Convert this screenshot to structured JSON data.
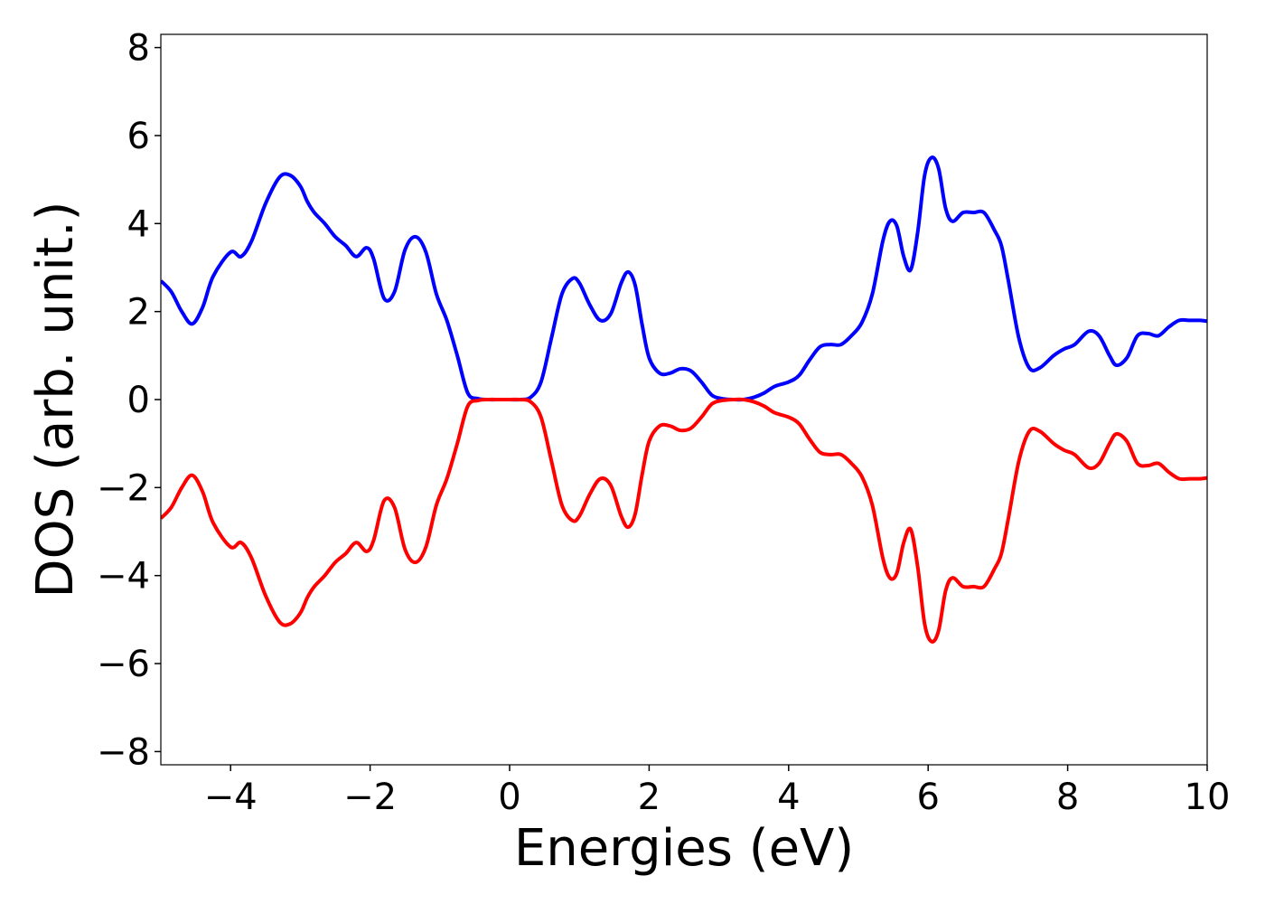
{
  "chart_data": {
    "type": "line",
    "xlabel": "Energies (eV)",
    "ylabel": "DOS (arb. unit.)",
    "xlim": [
      -5,
      10
    ],
    "ylim": [
      -8.3,
      8.3
    ],
    "xticks": [
      -4,
      -2,
      0,
      2,
      4,
      6,
      8,
      10
    ],
    "yticks": [
      -8,
      -6,
      -4,
      -2,
      0,
      2,
      4,
      6,
      8
    ],
    "xtick_labels": [
      "−4",
      "−2",
      "0",
      "2",
      "4",
      "6",
      "8",
      "10"
    ],
    "ytick_labels": [
      "−8",
      "−6",
      "−4",
      "−2",
      "0",
      "2",
      "4",
      "6",
      "8"
    ],
    "grid": false,
    "series": [
      {
        "color": "#0000ff",
        "x": [
          -5.0,
          -4.85,
          -4.7,
          -4.55,
          -4.4,
          -4.25,
          -4.0,
          -3.85,
          -3.7,
          -3.5,
          -3.3,
          -3.15,
          -3.0,
          -2.9,
          -2.8,
          -2.65,
          -2.5,
          -2.35,
          -2.2,
          -2.05,
          -1.95,
          -1.8,
          -1.65,
          -1.5,
          -1.35,
          -1.2,
          -1.05,
          -0.9,
          -0.75,
          -0.6,
          -0.45,
          -0.3,
          -0.15,
          0.0,
          0.15,
          0.3,
          0.45,
          0.6,
          0.75,
          0.9,
          1.0,
          1.15,
          1.3,
          1.45,
          1.6,
          1.7,
          1.8,
          1.9,
          2.0,
          2.15,
          2.3,
          2.45,
          2.6,
          2.75,
          2.9,
          3.05,
          3.2,
          3.35,
          3.5,
          3.65,
          3.8,
          4.0,
          4.15,
          4.3,
          4.45,
          4.6,
          4.75,
          4.9,
          5.05,
          5.2,
          5.35,
          5.45,
          5.55,
          5.65,
          5.75,
          5.85,
          5.95,
          6.05,
          6.15,
          6.25,
          6.35,
          6.5,
          6.65,
          6.8,
          6.95,
          7.05,
          7.15,
          7.3,
          7.45,
          7.6,
          7.8,
          7.95,
          8.1,
          8.3,
          8.45,
          8.6,
          8.7,
          8.85,
          9.0,
          9.15,
          9.3,
          9.45,
          9.6,
          9.75,
          9.9,
          10.0
        ],
        "y": [
          2.7,
          2.45,
          2.0,
          1.72,
          2.1,
          2.8,
          3.35,
          3.25,
          3.6,
          4.45,
          5.05,
          5.1,
          4.85,
          4.5,
          4.25,
          4.0,
          3.7,
          3.5,
          3.25,
          3.45,
          3.2,
          2.3,
          2.45,
          3.4,
          3.7,
          3.35,
          2.4,
          1.8,
          1.0,
          0.15,
          0.02,
          0.0,
          0.0,
          0.0,
          0.0,
          0.05,
          0.4,
          1.4,
          2.4,
          2.75,
          2.65,
          2.15,
          1.8,
          1.95,
          2.65,
          2.9,
          2.6,
          1.7,
          0.95,
          0.6,
          0.6,
          0.7,
          0.65,
          0.4,
          0.1,
          0.02,
          0.0,
          0.0,
          0.05,
          0.15,
          0.3,
          0.4,
          0.55,
          0.9,
          1.2,
          1.25,
          1.25,
          1.45,
          1.75,
          2.4,
          3.6,
          4.05,
          3.95,
          3.25,
          2.95,
          3.8,
          5.1,
          5.5,
          5.25,
          4.35,
          4.05,
          4.25,
          4.25,
          4.25,
          3.85,
          3.5,
          2.7,
          1.4,
          0.72,
          0.72,
          1.0,
          1.15,
          1.25,
          1.55,
          1.45,
          1.0,
          0.78,
          0.95,
          1.45,
          1.5,
          1.45,
          1.65,
          1.8,
          1.8,
          1.8,
          1.78
        ]
      },
      {
        "color": "#ff0000",
        "x": [
          -5.0,
          -4.85,
          -4.7,
          -4.55,
          -4.4,
          -4.25,
          -4.0,
          -3.85,
          -3.7,
          -3.5,
          -3.3,
          -3.15,
          -3.0,
          -2.9,
          -2.8,
          -2.65,
          -2.5,
          -2.35,
          -2.2,
          -2.05,
          -1.95,
          -1.8,
          -1.65,
          -1.5,
          -1.35,
          -1.2,
          -1.05,
          -0.9,
          -0.75,
          -0.6,
          -0.45,
          -0.3,
          -0.15,
          0.0,
          0.15,
          0.3,
          0.45,
          0.6,
          0.75,
          0.9,
          1.0,
          1.15,
          1.3,
          1.45,
          1.6,
          1.7,
          1.8,
          1.9,
          2.0,
          2.15,
          2.3,
          2.45,
          2.6,
          2.75,
          2.9,
          3.05,
          3.2,
          3.35,
          3.5,
          3.65,
          3.8,
          4.0,
          4.15,
          4.3,
          4.45,
          4.6,
          4.75,
          4.9,
          5.05,
          5.2,
          5.35,
          5.45,
          5.55,
          5.65,
          5.75,
          5.85,
          5.95,
          6.05,
          6.15,
          6.25,
          6.35,
          6.5,
          6.65,
          6.8,
          6.95,
          7.05,
          7.15,
          7.3,
          7.45,
          7.6,
          7.8,
          7.95,
          8.1,
          8.3,
          8.45,
          8.6,
          8.7,
          8.85,
          9.0,
          9.15,
          9.3,
          9.45,
          9.6,
          9.75,
          9.9,
          10.0
        ],
        "y": [
          -2.7,
          -2.45,
          -2.0,
          -1.72,
          -2.1,
          -2.8,
          -3.35,
          -3.25,
          -3.6,
          -4.45,
          -5.05,
          -5.1,
          -4.85,
          -4.5,
          -4.25,
          -4.0,
          -3.7,
          -3.5,
          -3.25,
          -3.45,
          -3.2,
          -2.3,
          -2.45,
          -3.4,
          -3.7,
          -3.35,
          -2.4,
          -1.8,
          -1.0,
          -0.15,
          -0.02,
          0.0,
          0.0,
          0.0,
          0.0,
          -0.05,
          -0.4,
          -1.4,
          -2.4,
          -2.75,
          -2.65,
          -2.15,
          -1.8,
          -1.95,
          -2.65,
          -2.9,
          -2.6,
          -1.7,
          -0.95,
          -0.6,
          -0.6,
          -0.7,
          -0.65,
          -0.4,
          -0.1,
          -0.02,
          0.0,
          0.0,
          -0.05,
          -0.15,
          -0.3,
          -0.4,
          -0.55,
          -0.9,
          -1.2,
          -1.25,
          -1.25,
          -1.45,
          -1.75,
          -2.4,
          -3.6,
          -4.05,
          -3.95,
          -3.25,
          -2.95,
          -3.8,
          -5.1,
          -5.5,
          -5.25,
          -4.35,
          -4.05,
          -4.25,
          -4.25,
          -4.25,
          -3.85,
          -3.5,
          -2.7,
          -1.4,
          -0.72,
          -0.72,
          -1.0,
          -1.15,
          -1.25,
          -1.55,
          -1.45,
          -1.0,
          -0.78,
          -0.95,
          -1.45,
          -1.5,
          -1.45,
          -1.65,
          -1.8,
          -1.8,
          -1.8,
          -1.78
        ]
      }
    ]
  }
}
